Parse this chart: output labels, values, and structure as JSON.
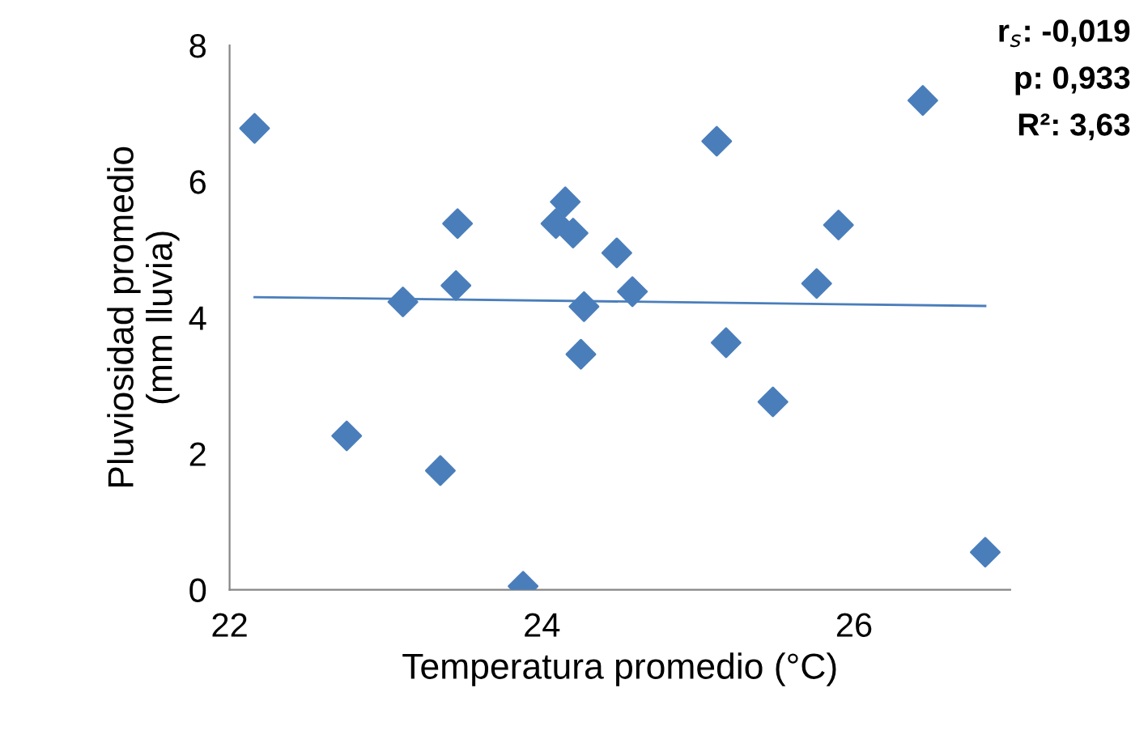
{
  "chart_data": {
    "type": "scatter",
    "xlabel": "Temperatura promedio (°C)",
    "ylabel": "Pluviosidad promedio\n(mm lluvia)",
    "xlim": [
      22,
      27
    ],
    "ylim": [
      0,
      8
    ],
    "xticks": [
      22,
      24,
      26
    ],
    "yticks": [
      0,
      2,
      4,
      6,
      8
    ],
    "grid": false,
    "legend": false,
    "series": [
      {
        "color": "#4a7ebb",
        "marker": "diamond",
        "x": [
          22.16,
          22.75,
          23.11,
          23.35,
          23.46,
          23.45,
          23.88,
          24.09,
          24.15,
          24.2,
          24.25,
          24.27,
          24.48,
          24.58,
          25.12,
          25.18,
          25.48,
          25.76,
          25.9,
          26.44,
          26.84
        ],
        "values": [
          6.78,
          2.26,
          4.23,
          1.75,
          5.38,
          4.47,
          0.05,
          5.38,
          5.7,
          5.24,
          3.46,
          4.16,
          4.95,
          4.38,
          6.59,
          3.63,
          2.76,
          4.5,
          5.36,
          7.19,
          0.55
        ]
      },
      {
        "type": "line",
        "marker": "none",
        "color": "#4a7ebb",
        "x": [
          22.16,
          26.84
        ],
        "values": [
          4.3,
          4.17
        ]
      }
    ],
    "annotations": [
      "r$_{s}$: -0,019",
      "p: 0,933",
      "R²: 3,63"
    ]
  }
}
